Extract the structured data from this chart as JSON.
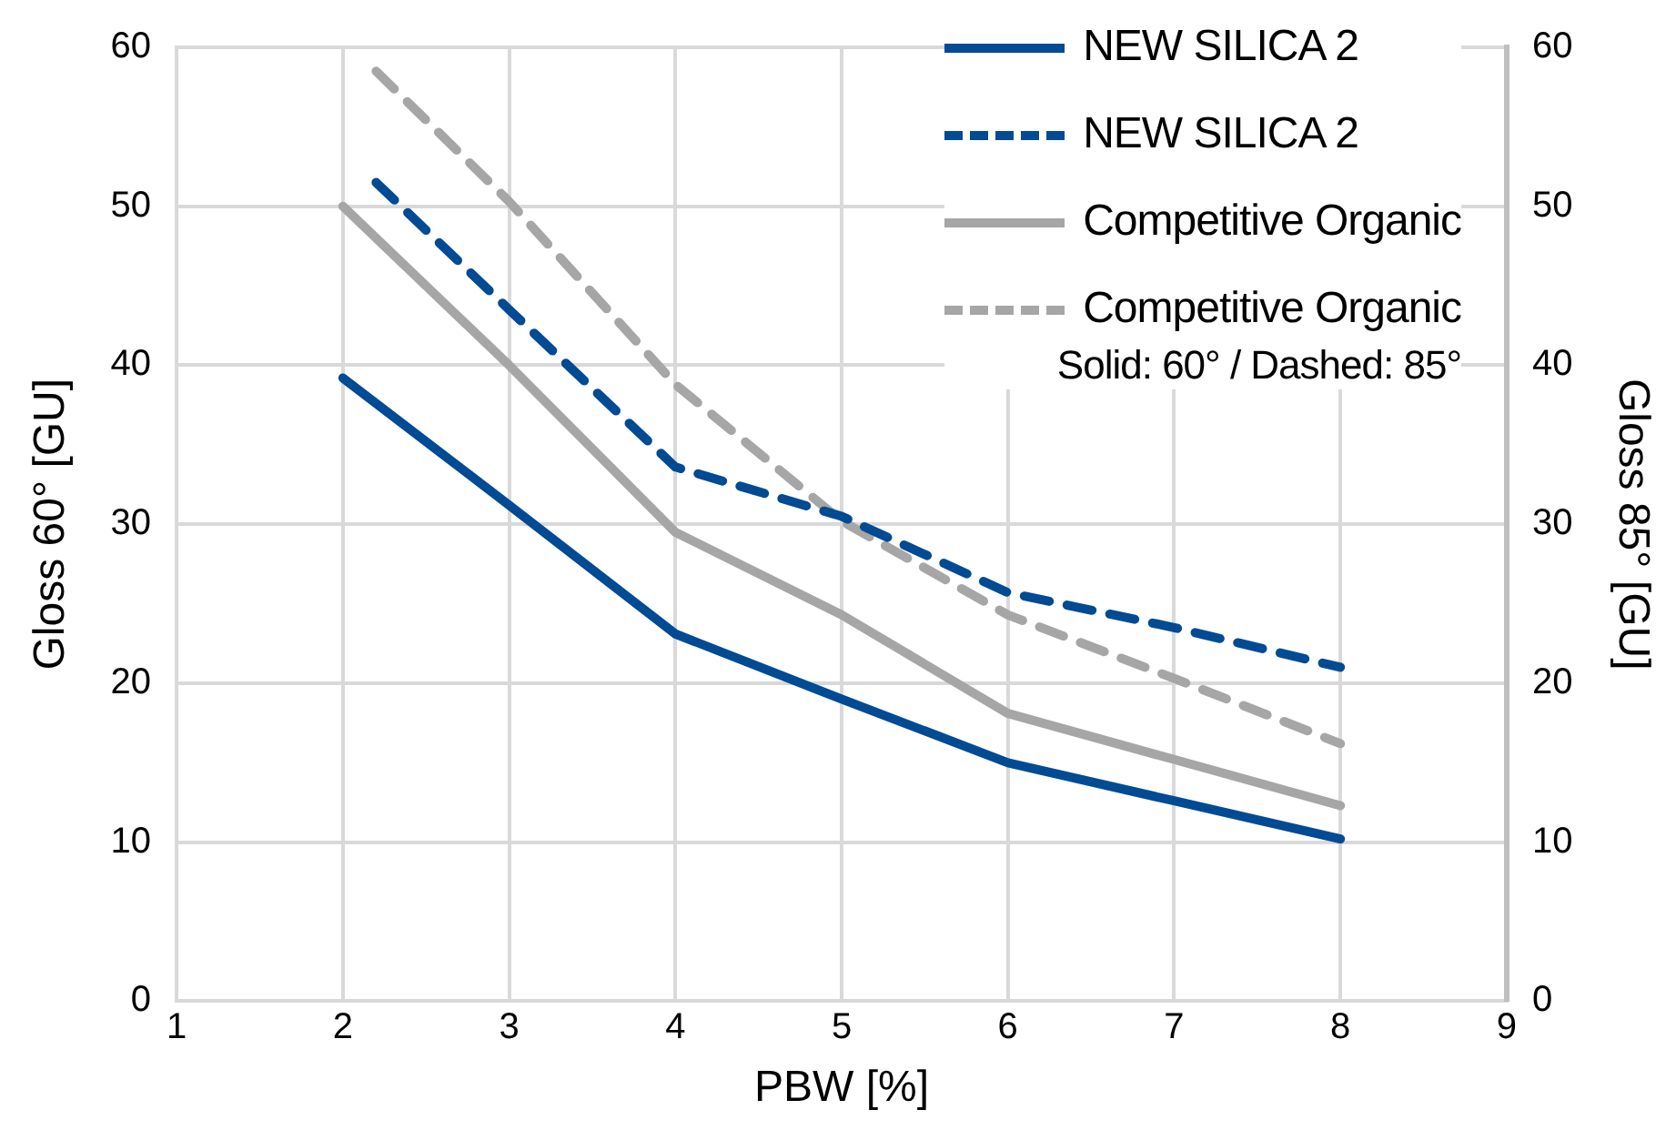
{
  "chart_data": {
    "type": "line",
    "xlabel": "PBW [%]",
    "ylabel": "Gloss 60° [GU]",
    "y2label": "Gloss 85° [GU]",
    "x": [
      2,
      3,
      4,
      5,
      6,
      7,
      8
    ],
    "xlim": [
      1,
      9
    ],
    "xticks": [
      1,
      2,
      3,
      4,
      5,
      6,
      7,
      8,
      9
    ],
    "ylim": [
      0,
      60
    ],
    "yticks": [
      0,
      10,
      20,
      30,
      40,
      50,
      60
    ],
    "y2lim": [
      0,
      60
    ],
    "y2ticks": [
      0,
      10,
      20,
      30,
      40,
      50,
      60
    ],
    "grid": true,
    "legend": "top right",
    "marker": "none",
    "series": [
      {
        "name": "NEW SILICA 2",
        "color": "#004b93",
        "line_style": "solid",
        "values": [
          39.2,
          31.2,
          23.1,
          19.0,
          15.0,
          12.6,
          10.2
        ]
      },
      {
        "name": "NEW SILICA 2",
        "color": "#004b93",
        "line_style": "dashed",
        "x": [
          2.2,
          3,
          4,
          5,
          6,
          7,
          8
        ],
        "values": [
          51.5,
          43.5,
          33.6,
          30.5,
          25.7,
          23.5,
          21.0
        ]
      },
      {
        "name": "Competitive Organic",
        "color": "#a6a6a6",
        "line_style": "solid",
        "values": [
          50,
          40.0,
          29.5,
          24.3,
          18.1,
          15.2,
          12.3
        ]
      },
      {
        "name": "Competitive Organic",
        "color": "#a6a6a6",
        "line_style": "dashed",
        "x": [
          2.2,
          3,
          4,
          5,
          6,
          7,
          8
        ],
        "values": [
          58.5,
          50.3,
          38.8,
          30.2,
          24.3,
          20.3,
          16.2
        ]
      }
    ],
    "annotations": [
      "Solid: 60° / Dashed: 85°"
    ]
  }
}
